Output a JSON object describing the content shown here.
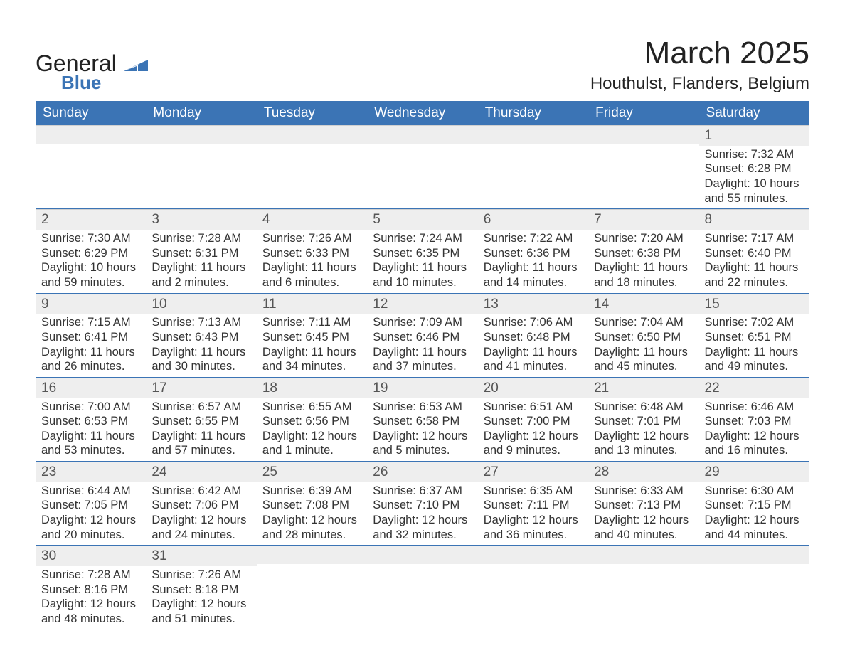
{
  "brand": {
    "text_general": "General",
    "text_blue": "Blue",
    "accent_color": "#3b74b5"
  },
  "header": {
    "month_title": "March 2025",
    "location": "Houthulst, Flanders, Belgium"
  },
  "colors": {
    "header_bg": "#3b74b5",
    "header_text": "#ffffff",
    "daynum_bg": "#eeeeee",
    "text": "#333333",
    "page_bg": "#ffffff"
  },
  "typography": {
    "month_title_fontsize": 44,
    "location_fontsize": 24,
    "weekday_fontsize": 19,
    "daynum_fontsize": 19,
    "body_fontsize": 16.5,
    "font_family": "Arial"
  },
  "weekdays": [
    "Sunday",
    "Monday",
    "Tuesday",
    "Wednesday",
    "Thursday",
    "Friday",
    "Saturday"
  ],
  "weeks": [
    [
      {
        "day": "",
        "sunrise": "",
        "sunset": "",
        "daylight_l1": "",
        "daylight_l2": ""
      },
      {
        "day": "",
        "sunrise": "",
        "sunset": "",
        "daylight_l1": "",
        "daylight_l2": ""
      },
      {
        "day": "",
        "sunrise": "",
        "sunset": "",
        "daylight_l1": "",
        "daylight_l2": ""
      },
      {
        "day": "",
        "sunrise": "",
        "sunset": "",
        "daylight_l1": "",
        "daylight_l2": ""
      },
      {
        "day": "",
        "sunrise": "",
        "sunset": "",
        "daylight_l1": "",
        "daylight_l2": ""
      },
      {
        "day": "",
        "sunrise": "",
        "sunset": "",
        "daylight_l1": "",
        "daylight_l2": ""
      },
      {
        "day": "1",
        "sunrise": "Sunrise: 7:32 AM",
        "sunset": "Sunset: 6:28 PM",
        "daylight_l1": "Daylight: 10 hours",
        "daylight_l2": "and 55 minutes."
      }
    ],
    [
      {
        "day": "2",
        "sunrise": "Sunrise: 7:30 AM",
        "sunset": "Sunset: 6:29 PM",
        "daylight_l1": "Daylight: 10 hours",
        "daylight_l2": "and 59 minutes."
      },
      {
        "day": "3",
        "sunrise": "Sunrise: 7:28 AM",
        "sunset": "Sunset: 6:31 PM",
        "daylight_l1": "Daylight: 11 hours",
        "daylight_l2": "and 2 minutes."
      },
      {
        "day": "4",
        "sunrise": "Sunrise: 7:26 AM",
        "sunset": "Sunset: 6:33 PM",
        "daylight_l1": "Daylight: 11 hours",
        "daylight_l2": "and 6 minutes."
      },
      {
        "day": "5",
        "sunrise": "Sunrise: 7:24 AM",
        "sunset": "Sunset: 6:35 PM",
        "daylight_l1": "Daylight: 11 hours",
        "daylight_l2": "and 10 minutes."
      },
      {
        "day": "6",
        "sunrise": "Sunrise: 7:22 AM",
        "sunset": "Sunset: 6:36 PM",
        "daylight_l1": "Daylight: 11 hours",
        "daylight_l2": "and 14 minutes."
      },
      {
        "day": "7",
        "sunrise": "Sunrise: 7:20 AM",
        "sunset": "Sunset: 6:38 PM",
        "daylight_l1": "Daylight: 11 hours",
        "daylight_l2": "and 18 minutes."
      },
      {
        "day": "8",
        "sunrise": "Sunrise: 7:17 AM",
        "sunset": "Sunset: 6:40 PM",
        "daylight_l1": "Daylight: 11 hours",
        "daylight_l2": "and 22 minutes."
      }
    ],
    [
      {
        "day": "9",
        "sunrise": "Sunrise: 7:15 AM",
        "sunset": "Sunset: 6:41 PM",
        "daylight_l1": "Daylight: 11 hours",
        "daylight_l2": "and 26 minutes."
      },
      {
        "day": "10",
        "sunrise": "Sunrise: 7:13 AM",
        "sunset": "Sunset: 6:43 PM",
        "daylight_l1": "Daylight: 11 hours",
        "daylight_l2": "and 30 minutes."
      },
      {
        "day": "11",
        "sunrise": "Sunrise: 7:11 AM",
        "sunset": "Sunset: 6:45 PM",
        "daylight_l1": "Daylight: 11 hours",
        "daylight_l2": "and 34 minutes."
      },
      {
        "day": "12",
        "sunrise": "Sunrise: 7:09 AM",
        "sunset": "Sunset: 6:46 PM",
        "daylight_l1": "Daylight: 11 hours",
        "daylight_l2": "and 37 minutes."
      },
      {
        "day": "13",
        "sunrise": "Sunrise: 7:06 AM",
        "sunset": "Sunset: 6:48 PM",
        "daylight_l1": "Daylight: 11 hours",
        "daylight_l2": "and 41 minutes."
      },
      {
        "day": "14",
        "sunrise": "Sunrise: 7:04 AM",
        "sunset": "Sunset: 6:50 PM",
        "daylight_l1": "Daylight: 11 hours",
        "daylight_l2": "and 45 minutes."
      },
      {
        "day": "15",
        "sunrise": "Sunrise: 7:02 AM",
        "sunset": "Sunset: 6:51 PM",
        "daylight_l1": "Daylight: 11 hours",
        "daylight_l2": "and 49 minutes."
      }
    ],
    [
      {
        "day": "16",
        "sunrise": "Sunrise: 7:00 AM",
        "sunset": "Sunset: 6:53 PM",
        "daylight_l1": "Daylight: 11 hours",
        "daylight_l2": "and 53 minutes."
      },
      {
        "day": "17",
        "sunrise": "Sunrise: 6:57 AM",
        "sunset": "Sunset: 6:55 PM",
        "daylight_l1": "Daylight: 11 hours",
        "daylight_l2": "and 57 minutes."
      },
      {
        "day": "18",
        "sunrise": "Sunrise: 6:55 AM",
        "sunset": "Sunset: 6:56 PM",
        "daylight_l1": "Daylight: 12 hours",
        "daylight_l2": "and 1 minute."
      },
      {
        "day": "19",
        "sunrise": "Sunrise: 6:53 AM",
        "sunset": "Sunset: 6:58 PM",
        "daylight_l1": "Daylight: 12 hours",
        "daylight_l2": "and 5 minutes."
      },
      {
        "day": "20",
        "sunrise": "Sunrise: 6:51 AM",
        "sunset": "Sunset: 7:00 PM",
        "daylight_l1": "Daylight: 12 hours",
        "daylight_l2": "and 9 minutes."
      },
      {
        "day": "21",
        "sunrise": "Sunrise: 6:48 AM",
        "sunset": "Sunset: 7:01 PM",
        "daylight_l1": "Daylight: 12 hours",
        "daylight_l2": "and 13 minutes."
      },
      {
        "day": "22",
        "sunrise": "Sunrise: 6:46 AM",
        "sunset": "Sunset: 7:03 PM",
        "daylight_l1": "Daylight: 12 hours",
        "daylight_l2": "and 16 minutes."
      }
    ],
    [
      {
        "day": "23",
        "sunrise": "Sunrise: 6:44 AM",
        "sunset": "Sunset: 7:05 PM",
        "daylight_l1": "Daylight: 12 hours",
        "daylight_l2": "and 20 minutes."
      },
      {
        "day": "24",
        "sunrise": "Sunrise: 6:42 AM",
        "sunset": "Sunset: 7:06 PM",
        "daylight_l1": "Daylight: 12 hours",
        "daylight_l2": "and 24 minutes."
      },
      {
        "day": "25",
        "sunrise": "Sunrise: 6:39 AM",
        "sunset": "Sunset: 7:08 PM",
        "daylight_l1": "Daylight: 12 hours",
        "daylight_l2": "and 28 minutes."
      },
      {
        "day": "26",
        "sunrise": "Sunrise: 6:37 AM",
        "sunset": "Sunset: 7:10 PM",
        "daylight_l1": "Daylight: 12 hours",
        "daylight_l2": "and 32 minutes."
      },
      {
        "day": "27",
        "sunrise": "Sunrise: 6:35 AM",
        "sunset": "Sunset: 7:11 PM",
        "daylight_l1": "Daylight: 12 hours",
        "daylight_l2": "and 36 minutes."
      },
      {
        "day": "28",
        "sunrise": "Sunrise: 6:33 AM",
        "sunset": "Sunset: 7:13 PM",
        "daylight_l1": "Daylight: 12 hours",
        "daylight_l2": "and 40 minutes."
      },
      {
        "day": "29",
        "sunrise": "Sunrise: 6:30 AM",
        "sunset": "Sunset: 7:15 PM",
        "daylight_l1": "Daylight: 12 hours",
        "daylight_l2": "and 44 minutes."
      }
    ],
    [
      {
        "day": "30",
        "sunrise": "Sunrise: 7:28 AM",
        "sunset": "Sunset: 8:16 PM",
        "daylight_l1": "Daylight: 12 hours",
        "daylight_l2": "and 48 minutes."
      },
      {
        "day": "31",
        "sunrise": "Sunrise: 7:26 AM",
        "sunset": "Sunset: 8:18 PM",
        "daylight_l1": "Daylight: 12 hours",
        "daylight_l2": "and 51 minutes."
      },
      {
        "day": "",
        "sunrise": "",
        "sunset": "",
        "daylight_l1": "",
        "daylight_l2": ""
      },
      {
        "day": "",
        "sunrise": "",
        "sunset": "",
        "daylight_l1": "",
        "daylight_l2": ""
      },
      {
        "day": "",
        "sunrise": "",
        "sunset": "",
        "daylight_l1": "",
        "daylight_l2": ""
      },
      {
        "day": "",
        "sunrise": "",
        "sunset": "",
        "daylight_l1": "",
        "daylight_l2": ""
      },
      {
        "day": "",
        "sunrise": "",
        "sunset": "",
        "daylight_l1": "",
        "daylight_l2": ""
      }
    ]
  ]
}
